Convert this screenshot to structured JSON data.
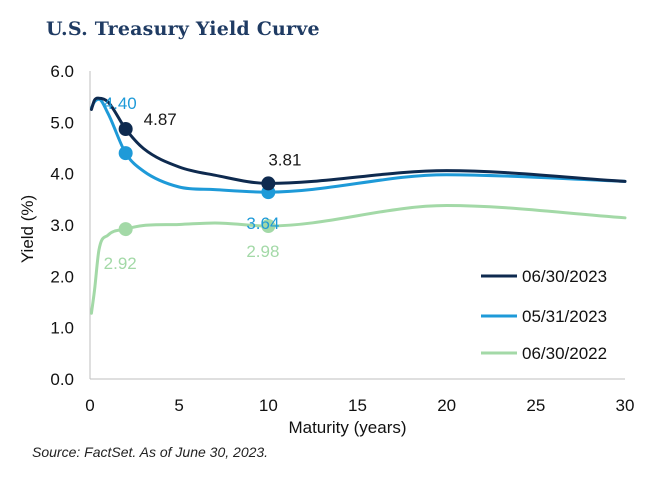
{
  "title": "U.S. Treasury Yield Curve",
  "source": "Source: FactSet. As of June 30, 2023.",
  "chart_data": {
    "type": "line",
    "xlabel": "Maturity (years)",
    "ylabel": "Yield (%)",
    "xlim": [
      0,
      30
    ],
    "ylim": [
      0,
      6
    ],
    "xticks": [
      0,
      5,
      10,
      15,
      20,
      25,
      30
    ],
    "yticks": [
      "0.0",
      "1.0",
      "2.0",
      "3.0",
      "4.0",
      "5.0",
      "6.0"
    ],
    "grid": false,
    "legend_position": "bottom-right",
    "series": [
      {
        "name": "06/30/2023",
        "color": "#0e2a4f",
        "x": [
          0.08,
          0.25,
          0.5,
          1,
          2,
          3,
          5,
          7,
          10,
          20,
          30
        ],
        "y": [
          5.25,
          5.43,
          5.47,
          5.4,
          4.87,
          4.49,
          4.13,
          3.97,
          3.81,
          4.06,
          3.85
        ],
        "markers": [
          {
            "x": 2,
            "y": 4.87,
            "label": "4.87"
          },
          {
            "x": 10,
            "y": 3.81,
            "label": "3.81"
          }
        ]
      },
      {
        "name": "05/31/2023",
        "color": "#1e9ad8",
        "x": [
          0.08,
          0.25,
          0.5,
          1,
          2,
          3,
          5,
          7,
          10,
          20,
          30
        ],
        "y": [
          5.28,
          5.4,
          5.45,
          5.18,
          4.4,
          4.05,
          3.74,
          3.69,
          3.64,
          3.98,
          3.85
        ],
        "markers": [
          {
            "x": 2,
            "y": 4.4,
            "label": "4.40"
          },
          {
            "x": 10,
            "y": 3.64,
            "label": "3.64"
          }
        ]
      },
      {
        "name": "06/30/2022",
        "color": "#a3d9a7",
        "x": [
          0.08,
          0.25,
          0.5,
          1,
          2,
          3,
          5,
          7,
          10,
          20,
          30
        ],
        "y": [
          1.28,
          1.72,
          2.51,
          2.8,
          2.92,
          2.99,
          3.01,
          3.04,
          2.98,
          3.38,
          3.14
        ],
        "markers": [
          {
            "x": 2,
            "y": 2.92,
            "label": "2.92"
          },
          {
            "x": 10,
            "y": 2.98,
            "label": "2.98"
          }
        ]
      }
    ]
  }
}
